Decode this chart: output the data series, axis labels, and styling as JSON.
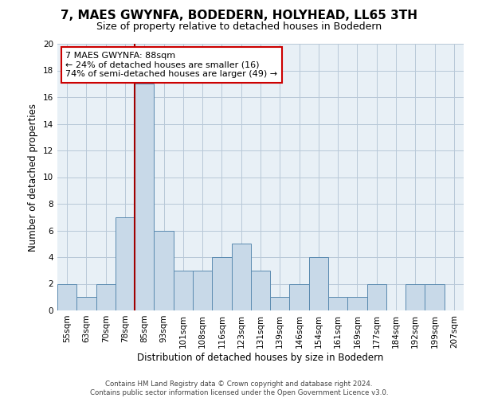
{
  "title": "7, MAES GWYNFA, BODEDERN, HOLYHEAD, LL65 3TH",
  "subtitle": "Size of property relative to detached houses in Bodedern",
  "xlabel": "Distribution of detached houses by size in Bodedern",
  "ylabel": "Number of detached properties",
  "categories": [
    "55sqm",
    "63sqm",
    "70sqm",
    "78sqm",
    "85sqm",
    "93sqm",
    "101sqm",
    "108sqm",
    "116sqm",
    "123sqm",
    "131sqm",
    "139sqm",
    "146sqm",
    "154sqm",
    "161sqm",
    "169sqm",
    "177sqm",
    "184sqm",
    "192sqm",
    "199sqm",
    "207sqm"
  ],
  "values": [
    2,
    1,
    2,
    7,
    17,
    6,
    3,
    3,
    4,
    5,
    3,
    1,
    2,
    4,
    1,
    1,
    2,
    0,
    2,
    2,
    0
  ],
  "bar_color": "#c8d9e8",
  "bar_edge_color": "#5a8ab0",
  "highlight_index": 4,
  "highlight_line_color": "#a00000",
  "ylim": [
    0,
    20
  ],
  "yticks": [
    0,
    2,
    4,
    6,
    8,
    10,
    12,
    14,
    16,
    18,
    20
  ],
  "annotation_text": "7 MAES GWYNFA: 88sqm\n← 24% of detached houses are smaller (16)\n74% of semi-detached houses are larger (49) →",
  "annotation_box_color": "#ffffff",
  "annotation_box_edge_color": "#cc0000",
  "footer_line1": "Contains HM Land Registry data © Crown copyright and database right 2024.",
  "footer_line2": "Contains public sector information licensed under the Open Government Licence v3.0.",
  "background_color": "#ffffff",
  "ax_background_color": "#e8f0f6",
  "grid_color": "#b8c8d8",
  "title_fontsize": 11,
  "subtitle_fontsize": 9,
  "ylabel_fontsize": 8.5,
  "xlabel_fontsize": 8.5,
  "tick_fontsize": 7.5,
  "footer_fontsize": 6.2,
  "annotation_fontsize": 8
}
